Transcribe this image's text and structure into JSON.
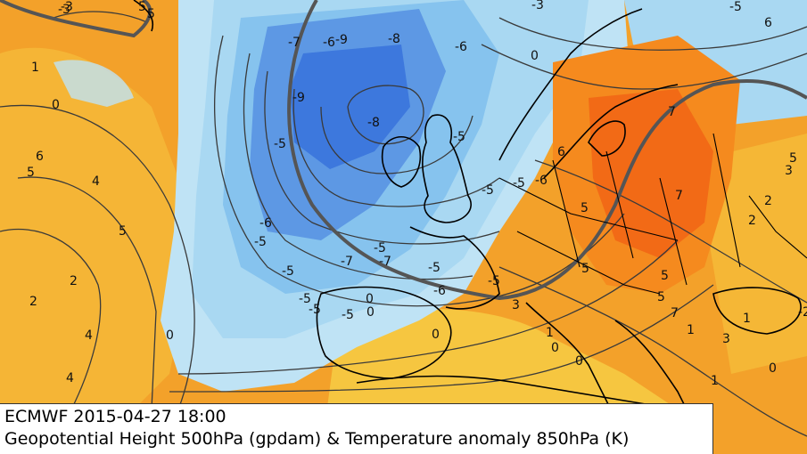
{
  "caption": {
    "model_run": "ECMWF 2015-04-27 18:00",
    "product": "Geopotential Height 500hPa (gpdam) & Temperature anomaly 850hPa (K)"
  },
  "colors": {
    "warm_orange": "#f3a12a",
    "warm_yellow": "#f6c640",
    "hot_orange": "#f26a16",
    "neutral_cream": "#f7ecd2",
    "cool_lightblue": "#a9d8f2",
    "cool_blue": "#72b1ea",
    "cold_blue": "#3d78dd",
    "contour": "#3a3a3a",
    "coast": "#000000"
  },
  "anomaly_labels": [
    "-3",
    "5",
    "1",
    "0",
    "6",
    "5",
    "4",
    "5",
    "2",
    "2",
    "4",
    "4",
    "0",
    "-7",
    "-6",
    "-9",
    "-8",
    "-9",
    "-8",
    "-5",
    "-6",
    "-5",
    "-7",
    "-7",
    "-5",
    "-5",
    "-5",
    "-5",
    "-5",
    "0",
    "0",
    "-5",
    "-6",
    "-5",
    "-5",
    "-6",
    "-5",
    "7",
    "7",
    "5",
    "5",
    "5",
    "5",
    "7",
    "3",
    "2",
    "2",
    "3",
    "5",
    "-5",
    "-6",
    "6",
    "-2",
    "1",
    "3",
    "0",
    "1",
    "0",
    "0",
    "1",
    "1",
    "0",
    "-5",
    "-3",
    "5",
    "6",
    "-3",
    "0"
  ]
}
